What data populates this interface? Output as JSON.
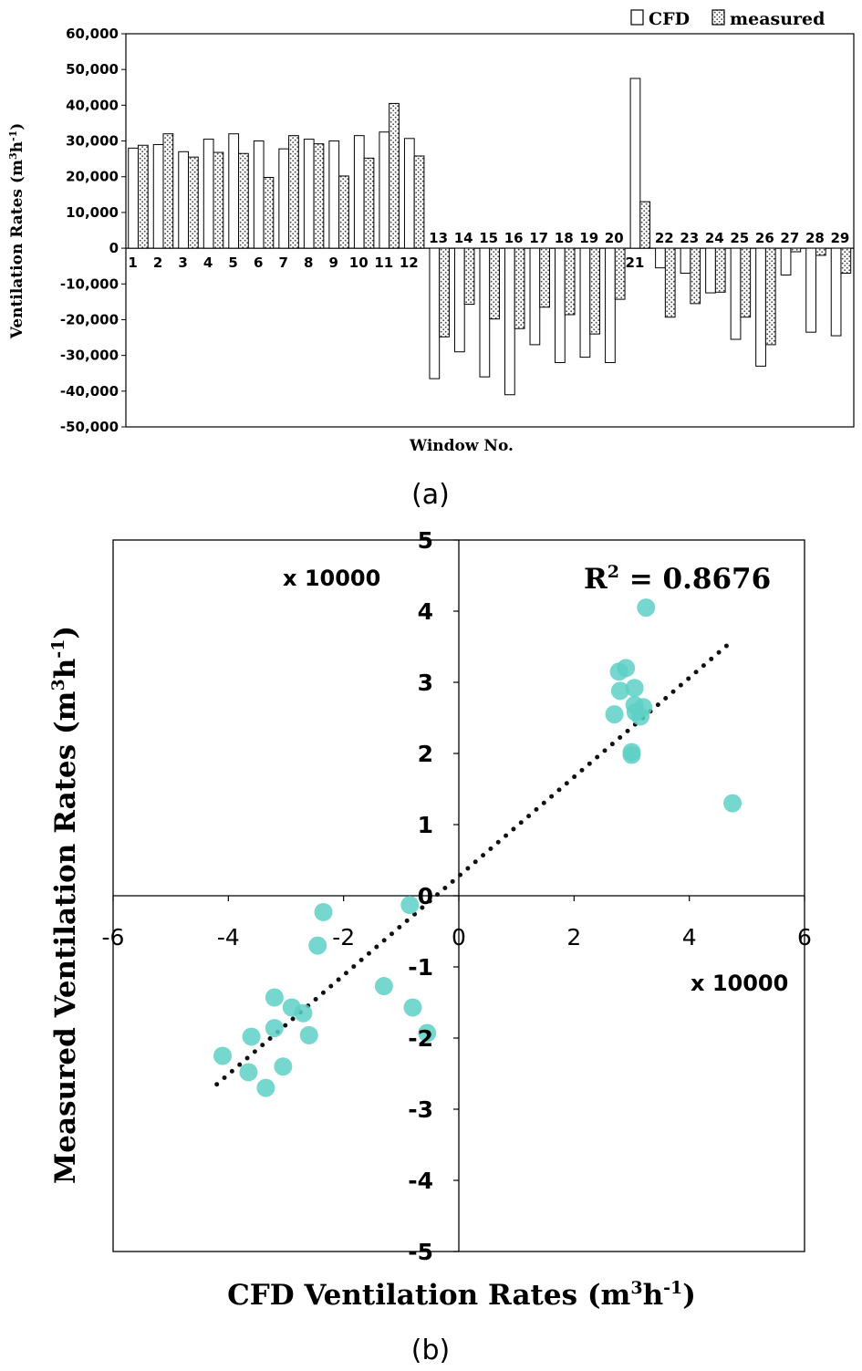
{
  "colors": {
    "axis": "#000000",
    "cfd_fill": "#ffffff",
    "measured_pattern": "#555555",
    "scatter_point": "#5ed0c6",
    "trendline": "#111111"
  },
  "chart_data": [
    {
      "type": "bar",
      "panel_label": "(a)",
      "xlabel": "Window No.",
      "ylabel_main": "Ventilation Rates (m",
      "ylabel_sup1": "3",
      "ylabel_mid": "h",
      "ylabel_sup2": "-1",
      "ylabel_end": ")",
      "ylim": [
        -50000,
        60000
      ],
      "yticks": [
        60000,
        50000,
        40000,
        30000,
        20000,
        10000,
        0,
        -10000,
        -20000,
        -30000,
        -40000,
        -50000
      ],
      "ytick_labels": [
        "60,000",
        "50,000",
        "40,000",
        "30,000",
        "20,000",
        "10,000",
        "0",
        "-10,000",
        "-20,000",
        "-30,000",
        "-40,000",
        "-50,000"
      ],
      "legend_position": "top-right",
      "legend": [
        "CFD",
        "measured"
      ],
      "categories": [
        "1",
        "2",
        "3",
        "4",
        "5",
        "6",
        "7",
        "8",
        "9",
        "10",
        "11",
        "12",
        "13",
        "14",
        "15",
        "16",
        "17",
        "18",
        "19",
        "20",
        "21",
        "22",
        "23",
        "24",
        "25",
        "26",
        "27",
        "28",
        "29"
      ],
      "series": [
        {
          "name": "CFD",
          "values": [
            28000,
            29000,
            27000,
            30500,
            32000,
            30000,
            27800,
            30500,
            30000,
            31500,
            32500,
            30700,
            -36500,
            -29000,
            -36000,
            -41000,
            -27000,
            -32000,
            -30500,
            -32000,
            47500,
            -5500,
            -7000,
            -12500,
            -25500,
            -33000,
            -7500,
            -23500,
            -24500
          ]
        },
        {
          "name": "measured",
          "values": [
            28800,
            32000,
            25500,
            26800,
            26500,
            19800,
            31500,
            29200,
            20200,
            25200,
            40500,
            25800,
            -24800,
            -15700,
            -19800,
            -22500,
            -16500,
            -18600,
            -24000,
            -14300,
            13000,
            -19300,
            -15500,
            -12300,
            -19300,
            -27000,
            -1000,
            -2000,
            -7000
          ]
        }
      ]
    },
    {
      "type": "scatter",
      "panel_label": "(b)",
      "xlabel": "CFD Ventilation Rates (m",
      "xlabel_sup1": "3",
      "xlabel_mid": "h",
      "xlabel_sup2": "-1",
      "xlabel_end": ")",
      "ylabel": "Measured  Ventilation Rates (m",
      "ylabel_sup1": "3",
      "ylabel_mid": "h",
      "ylabel_sup2": "-1",
      "ylabel_end": ")",
      "xlim": [
        -6,
        6
      ],
      "ylim": [
        -5,
        5
      ],
      "xticks": [
        -6,
        -4,
        -2,
        0,
        2,
        4,
        6
      ],
      "xtick_labels": [
        "-6",
        "-4",
        "-2",
        "0",
        "2",
        "4",
        "6"
      ],
      "yticks": [
        5,
        4,
        3,
        2,
        1,
        0,
        -1,
        -2,
        -3,
        -4,
        -5
      ],
      "ytick_labels": [
        "5",
        "4",
        "3",
        "2",
        "1",
        "0",
        "-1",
        "-2",
        "-3",
        "-4",
        "-5"
      ],
      "x_multiplier_label": "x 10000",
      "y_multiplier_label": "x 10000",
      "r2_label": "R",
      "r2_sup": "2",
      "r2_value": " = 0.8676",
      "trendline": {
        "x": [
          -4.2,
          4.7
        ],
        "y": [
          -2.65,
          3.55
        ]
      },
      "points": [
        {
          "x": 2.8,
          "y": 2.88
        },
        {
          "x": 2.9,
          "y": 3.2
        },
        {
          "x": 2.7,
          "y": 2.55
        },
        {
          "x": 3.05,
          "y": 2.68
        },
        {
          "x": 3.2,
          "y": 2.65
        },
        {
          "x": 3.0,
          "y": 1.98
        },
        {
          "x": 2.78,
          "y": 3.15
        },
        {
          "x": 3.05,
          "y": 2.92
        },
        {
          "x": 3.0,
          "y": 2.02
        },
        {
          "x": 3.15,
          "y": 2.52
        },
        {
          "x": 3.25,
          "y": 4.05
        },
        {
          "x": 3.07,
          "y": 2.58
        },
        {
          "x": 4.75,
          "y": 1.3
        },
        {
          "x": -3.65,
          "y": -2.48
        },
        {
          "x": -2.9,
          "y": -1.57
        },
        {
          "x": -3.6,
          "y": -1.98
        },
        {
          "x": -4.1,
          "y": -2.25
        },
        {
          "x": -2.7,
          "y": -1.65
        },
        {
          "x": -3.2,
          "y": -1.86
        },
        {
          "x": -3.05,
          "y": -2.4
        },
        {
          "x": -3.2,
          "y": -1.43
        },
        {
          "x": -2.45,
          "y": -0.7
        },
        {
          "x": -1.3,
          "y": -1.27
        },
        {
          "x": -0.8,
          "y": -1.57
        },
        {
          "x": -2.35,
          "y": -0.23
        },
        {
          "x": -0.85,
          "y": -0.13
        },
        {
          "x": -0.55,
          "y": -1.93
        },
        {
          "x": -2.6,
          "y": -1.96
        },
        {
          "x": -3.35,
          "y": -2.7
        }
      ]
    }
  ]
}
